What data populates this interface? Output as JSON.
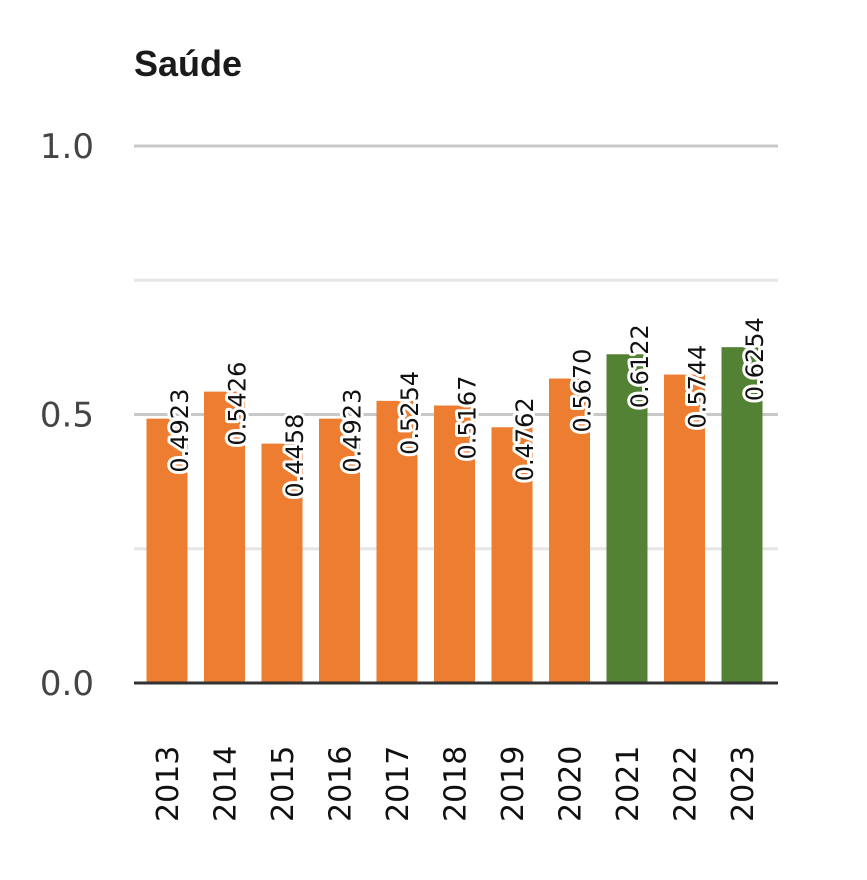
{
  "chart_data": {
    "type": "bar",
    "title": "Saúde",
    "categories": [
      "2013",
      "2014",
      "2015",
      "2016",
      "2017",
      "2018",
      "2019",
      "2020",
      "2021",
      "2022",
      "2023"
    ],
    "values": [
      0.4923,
      0.5426,
      0.4458,
      0.4923,
      0.5254,
      0.5167,
      0.4762,
      0.567,
      0.6122,
      0.5744,
      0.6254
    ],
    "value_labels": [
      "0.4923",
      "0.5426",
      "0.4458",
      "0.4923",
      "0.5254",
      "0.5167",
      "0.4762",
      "0.5670",
      "0.6122",
      "0.5744",
      "0.6254"
    ],
    "highlighted": [
      false,
      false,
      false,
      false,
      false,
      false,
      false,
      false,
      true,
      false,
      true
    ],
    "ylim": [
      0,
      1.0
    ],
    "yticks": [
      0.0,
      0.5,
      1.0
    ],
    "ytick_labels": [
      "0.0",
      "0.5",
      "1.0"
    ],
    "minor_gridlines": [
      0.25,
      0.75
    ],
    "grid": true,
    "colors": {
      "default": "#ed7d31",
      "highlight": "#548235",
      "grid": "#c8c8c8",
      "axis": "#333333"
    }
  }
}
